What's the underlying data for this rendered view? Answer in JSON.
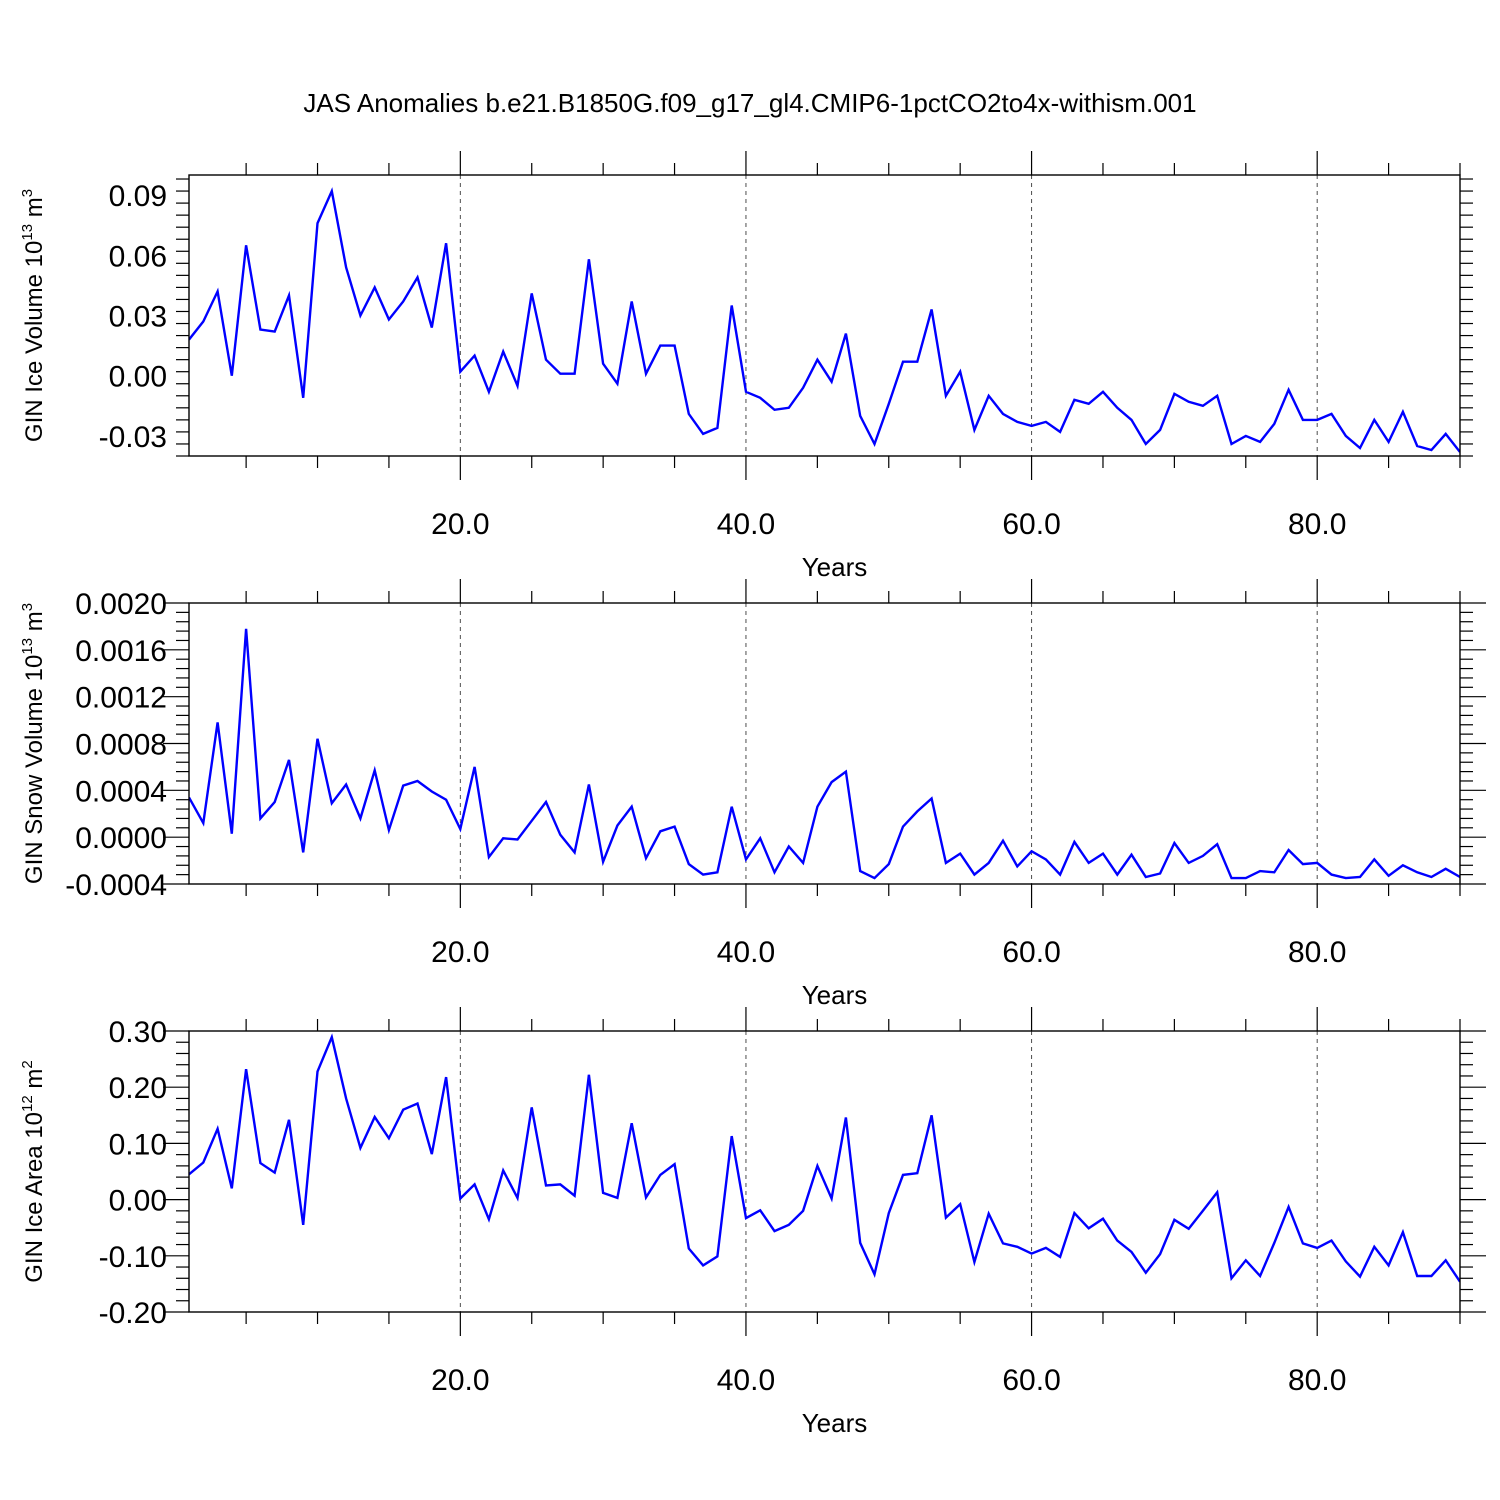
{
  "title": "JAS Anomalies b.e21.B1850G.f09_g17_gl4.CMIP6-1pctCO2to4x-withism.001",
  "colors": {
    "line": "#0000ff",
    "axis": "#000000",
    "grid": "#000000",
    "background": "#ffffff"
  },
  "chart_data": [
    {
      "type": "line",
      "ylabel": "GIN Ice Volume 10",
      "ylabel_exp": "13",
      "ylabel_unit": " m",
      "ylabel_unit_exp": "3",
      "xlabel": "Years",
      "xlim": [
        1,
        90
      ],
      "ylim": [
        -0.04,
        0.1
      ],
      "yticks": [
        -0.03,
        0.0,
        0.03,
        0.06,
        0.09
      ],
      "ytick_labels": [
        "-0.03",
        "0.00",
        "0.03",
        "0.06",
        "0.09"
      ],
      "xticks": [
        20,
        40,
        60,
        80
      ],
      "xtick_labels": [
        "20.0",
        "40.0",
        "60.0",
        "80.0"
      ],
      "grid": "dashed vertical at major x ticks",
      "x_start": 1,
      "values": [
        0.018,
        0.027,
        0.042,
        0.0,
        0.065,
        0.023,
        0.022,
        0.04,
        -0.011,
        0.076,
        0.092,
        0.054,
        0.03,
        0.044,
        0.028,
        0.037,
        0.049,
        0.024,
        0.066,
        0.002,
        0.01,
        -0.008,
        0.012,
        -0.005,
        0.041,
        0.008,
        0.001,
        0.001,
        0.058,
        0.006,
        -0.004,
        0.037,
        0.001,
        0.015,
        0.015,
        -0.019,
        -0.029,
        -0.026,
        0.035,
        -0.008,
        -0.011,
        -0.017,
        -0.016,
        -0.006,
        0.008,
        -0.003,
        0.021,
        -0.02,
        -0.034,
        -0.014,
        0.007,
        0.007,
        0.033,
        -0.01,
        0.002,
        -0.027,
        -0.01,
        -0.019,
        -0.023,
        -0.025,
        -0.023,
        -0.028,
        -0.012,
        -0.014,
        -0.008,
        -0.016,
        -0.022,
        -0.034,
        -0.027,
        -0.009,
        -0.013,
        -0.015,
        -0.01,
        -0.034,
        -0.03,
        -0.033,
        -0.024,
        -0.007,
        -0.022,
        -0.022,
        -0.019,
        -0.03,
        -0.036,
        -0.022,
        -0.033,
        -0.018,
        -0.035,
        -0.037,
        -0.029,
        -0.038
      ]
    },
    {
      "type": "line",
      "ylabel": "GIN Snow Volume 10",
      "ylabel_exp": "13",
      "ylabel_unit": " m",
      "ylabel_unit_exp": "3",
      "xlabel": "Years",
      "xlim": [
        1,
        90
      ],
      "ylim": [
        -0.0004,
        0.002
      ],
      "yticks": [
        -0.0004,
        0.0,
        0.0004,
        0.0008,
        0.0012,
        0.0016,
        0.002
      ],
      "ytick_labels": [
        "-0.0004",
        "0.0000",
        "0.0004",
        "0.0008",
        "0.0012",
        "0.0016",
        "0.0020"
      ],
      "xticks": [
        20,
        40,
        60,
        80
      ],
      "xtick_labels": [
        "20.0",
        "40.0",
        "60.0",
        "80.0"
      ],
      "grid": "dashed vertical at major x ticks",
      "x_start": 1,
      "values": [
        0.00034,
        0.00012,
        0.00098,
        3e-05,
        0.00178,
        0.00016,
        0.0003,
        0.00066,
        -0.00013,
        0.00084,
        0.00029,
        0.00045,
        0.00016,
        0.00057,
        6e-05,
        0.00044,
        0.00048,
        0.00039,
        0.00032,
        7e-05,
        0.0006,
        -0.00017,
        -1e-05,
        -2e-05,
        0.00014,
        0.0003,
        2e-05,
        -0.00013,
        0.00045,
        -0.00021,
        0.0001,
        0.00026,
        -0.00018,
        5e-05,
        9e-05,
        -0.00023,
        -0.00032,
        -0.0003,
        0.00026,
        -0.00019,
        -1e-05,
        -0.0003,
        -8e-05,
        -0.00022,
        0.00026,
        0.00047,
        0.00056,
        -0.00029,
        -0.00035,
        -0.00023,
        9e-05,
        0.00022,
        0.00033,
        -0.00022,
        -0.00014,
        -0.00032,
        -0.00022,
        -3e-05,
        -0.00025,
        -0.00012,
        -0.00019,
        -0.00032,
        -4e-05,
        -0.00022,
        -0.00014,
        -0.00032,
        -0.00015,
        -0.00034,
        -0.00031,
        -5e-05,
        -0.00022,
        -0.00016,
        -6e-05,
        -0.00035,
        -0.00035,
        -0.00029,
        -0.0003,
        -0.00011,
        -0.00023,
        -0.00022,
        -0.00032,
        -0.00035,
        -0.00034,
        -0.00019,
        -0.00033,
        -0.00024,
        -0.0003,
        -0.00034,
        -0.00027,
        -0.00034
      ]
    },
    {
      "type": "line",
      "ylabel": "GIN Ice Area 10",
      "ylabel_exp": "12",
      "ylabel_unit": " m",
      "ylabel_unit_exp": "2",
      "xlabel": "Years",
      "xlim": [
        1,
        90
      ],
      "ylim": [
        -0.2,
        0.3
      ],
      "yticks": [
        -0.2,
        -0.1,
        0.0,
        0.1,
        0.2,
        0.3
      ],
      "ytick_labels": [
        "-0.20",
        "-0.10",
        "0.00",
        "0.10",
        "0.20",
        "0.30"
      ],
      "xticks": [
        20,
        40,
        60,
        80
      ],
      "xtick_labels": [
        "20.0",
        "40.0",
        "60.0",
        "80.0"
      ],
      "grid": "dashed vertical at major x ticks",
      "x_start": 1,
      "values": [
        0.045,
        0.066,
        0.126,
        0.02,
        0.232,
        0.065,
        0.048,
        0.142,
        -0.045,
        0.228,
        0.289,
        0.18,
        0.092,
        0.147,
        0.109,
        0.16,
        0.171,
        0.081,
        0.218,
        0.002,
        0.027,
        -0.035,
        0.052,
        0.003,
        0.164,
        0.025,
        0.027,
        0.007,
        0.222,
        0.012,
        0.003,
        0.136,
        0.004,
        0.044,
        0.063,
        -0.087,
        -0.117,
        -0.101,
        0.113,
        -0.033,
        -0.019,
        -0.056,
        -0.045,
        -0.02,
        0.06,
        0.002,
        0.146,
        -0.077,
        -0.133,
        -0.024,
        0.044,
        0.047,
        0.15,
        -0.032,
        -0.008,
        -0.111,
        -0.025,
        -0.078,
        -0.084,
        -0.096,
        -0.086,
        -0.102,
        -0.024,
        -0.051,
        -0.034,
        -0.073,
        -0.093,
        -0.13,
        -0.097,
        -0.036,
        -0.052,
        -0.02,
        0.013,
        -0.14,
        -0.108,
        -0.136,
        -0.077,
        -0.013,
        -0.078,
        -0.086,
        -0.073,
        -0.11,
        -0.137,
        -0.084,
        -0.117,
        -0.058,
        -0.136,
        -0.136,
        -0.108,
        -0.146
      ]
    }
  ]
}
